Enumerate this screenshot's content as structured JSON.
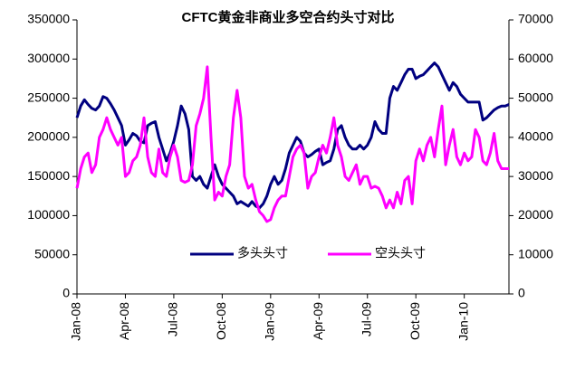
{
  "chart_data": {
    "type": "line",
    "title": "CFTC黄金非商业多空合约头寸对比",
    "categories": [
      "Jan-08",
      null,
      null,
      null,
      null,
      null,
      null,
      null,
      null,
      null,
      null,
      null,
      null,
      "Apr-08",
      null,
      null,
      null,
      null,
      null,
      null,
      null,
      null,
      null,
      null,
      null,
      null,
      "Jul-08",
      null,
      null,
      null,
      null,
      null,
      null,
      null,
      null,
      null,
      null,
      null,
      null,
      "Oct-08",
      null,
      null,
      null,
      null,
      null,
      null,
      null,
      null,
      null,
      null,
      null,
      null,
      "Jan-09",
      null,
      null,
      null,
      null,
      null,
      null,
      null,
      null,
      null,
      null,
      null,
      null,
      "Apr-09",
      null,
      null,
      null,
      null,
      null,
      null,
      null,
      null,
      null,
      null,
      null,
      null,
      "Jul-09",
      null,
      null,
      null,
      null,
      null,
      null,
      null,
      null,
      null,
      null,
      null,
      null,
      "Oct-09",
      null,
      null,
      null,
      null,
      null,
      null,
      null,
      null,
      null,
      null,
      null,
      null,
      "Jan-10",
      null,
      null,
      null,
      null,
      null,
      null,
      null,
      null,
      null,
      null,
      null,
      null
    ],
    "series": [
      {
        "name": "多头头寸",
        "color": "#000080",
        "axis": "y",
        "values": [
          225000,
          240000,
          248000,
          242000,
          237000,
          235000,
          240000,
          252000,
          250000,
          243000,
          235000,
          225000,
          215000,
          190000,
          197000,
          205000,
          202000,
          195000,
          193000,
          215000,
          218000,
          220000,
          200000,
          185000,
          170000,
          180000,
          195000,
          215000,
          240000,
          230000,
          210000,
          150000,
          145000,
          150000,
          140000,
          135000,
          150000,
          165000,
          150000,
          140000,
          135000,
          130000,
          125000,
          115000,
          118000,
          115000,
          112000,
          118000,
          112000,
          110000,
          115000,
          125000,
          140000,
          150000,
          140000,
          145000,
          160000,
          180000,
          190000,
          200000,
          195000,
          180000,
          175000,
          178000,
          182000,
          185000,
          165000,
          168000,
          170000,
          185000,
          210000,
          215000,
          200000,
          190000,
          185000,
          185000,
          190000,
          185000,
          190000,
          200000,
          220000,
          210000,
          205000,
          205000,
          250000,
          265000,
          260000,
          270000,
          280000,
          287000,
          287000,
          275000,
          278000,
          280000,
          285000,
          290000,
          295000,
          290000,
          280000,
          270000,
          260000,
          270000,
          265000,
          255000,
          250000,
          245000,
          245000,
          245000,
          245000,
          222000,
          225000,
          230000,
          235000,
          238000,
          240000,
          240000,
          242000
        ]
      },
      {
        "name": "空头头寸",
        "color": "#ff00ff",
        "axis": "y2",
        "values": [
          27000,
          32000,
          35000,
          36000,
          31000,
          33000,
          40000,
          42000,
          45000,
          42000,
          40000,
          38000,
          40000,
          30000,
          31000,
          34000,
          35000,
          38000,
          45000,
          35000,
          31000,
          30000,
          37000,
          31000,
          30000,
          35000,
          38000,
          35000,
          29000,
          28500,
          29000,
          33000,
          43000,
          46000,
          50000,
          58000,
          40000,
          24000,
          26000,
          25000,
          30000,
          33000,
          45000,
          52000,
          45000,
          30000,
          27000,
          28000,
          24000,
          21000,
          20000,
          18500,
          19000,
          22000,
          24000,
          25000,
          25000,
          30000,
          35000,
          37000,
          38000,
          36000,
          27000,
          30000,
          31000,
          35000,
          38000,
          36000,
          40000,
          45000,
          38000,
          35000,
          30000,
          29000,
          31000,
          33000,
          28000,
          30000,
          30000,
          27000,
          27500,
          27000,
          25000,
          22000,
          24000,
          22000,
          26000,
          23000,
          29000,
          30000,
          23000,
          34000,
          37000,
          34000,
          38000,
          40000,
          35000,
          42000,
          48000,
          33000,
          38000,
          42000,
          35000,
          33000,
          36000,
          34000,
          35000,
          42000,
          40000,
          34000,
          33000,
          36000,
          41000,
          34000,
          32000,
          32000,
          32000
        ]
      }
    ],
    "ylim": [
      0,
      350000
    ],
    "yticks": [
      0,
      50000,
      100000,
      150000,
      200000,
      250000,
      300000,
      350000
    ],
    "y2lim": [
      0,
      70000
    ],
    "y2ticks": [
      0,
      10000,
      20000,
      30000,
      40000,
      50000,
      60000,
      70000
    ],
    "grid": false,
    "legend": "bottom"
  }
}
